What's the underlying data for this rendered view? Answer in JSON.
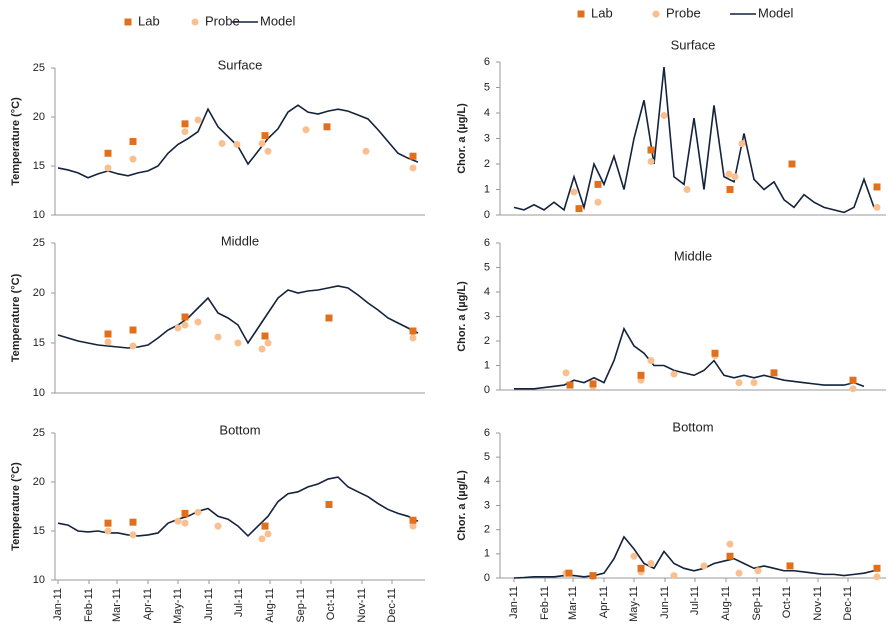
{
  "chart_data": [
    {
      "type": "line",
      "title": "Surface",
      "ylabel": "Temperature (°C)",
      "xlim": [
        -3,
        367
      ],
      "ylim": [
        10,
        25
      ],
      "yticks": [
        10,
        15,
        20,
        25
      ],
      "series": [
        {
          "name": "Lab",
          "style": "square",
          "color": "#e0701e",
          "x": [
            50,
            75,
            127,
            207,
            269,
            355
          ],
          "values": [
            16.3,
            17.5,
            19.3,
            18.1,
            19,
            16
          ]
        },
        {
          "name": "Probe",
          "style": "circle",
          "color": "#f9bf8f",
          "x": [
            50,
            75,
            127,
            140,
            164,
            179,
            204,
            210,
            248,
            308,
            355
          ],
          "values": [
            14.8,
            15.7,
            18.5,
            19.7,
            17.3,
            17.2,
            17.3,
            16.5,
            18.7,
            16.5,
            14.8
          ]
        },
        {
          "name": "Model",
          "style": "line",
          "color": "#14233b",
          "x": [
            0,
            10,
            20,
            30,
            40,
            50,
            60,
            70,
            80,
            90,
            100,
            110,
            120,
            130,
            140,
            150,
            160,
            170,
            180,
            190,
            200,
            210,
            220,
            230,
            240,
            250,
            260,
            270,
            280,
            290,
            300,
            310,
            320,
            330,
            340,
            350,
            360
          ],
          "values": [
            14.8,
            14.6,
            14.3,
            13.8,
            14.2,
            14.5,
            14.2,
            14.0,
            14.3,
            14.5,
            15.0,
            16.3,
            17.2,
            17.8,
            18.5,
            20.8,
            19.0,
            18.0,
            17.0,
            15.2,
            16.5,
            17.8,
            18.8,
            20.5,
            21.2,
            20.5,
            20.3,
            20.6,
            20.8,
            20.6,
            20.2,
            19.8,
            18.7,
            17.5,
            16.3,
            15.8,
            15.4
          ]
        }
      ]
    },
    {
      "type": "line",
      "title": "Middle",
      "ylabel": "Temperature (°C)",
      "xlim": [
        -3,
        367
      ],
      "ylim": [
        10,
        25
      ],
      "yticks": [
        10,
        15,
        20,
        25
      ],
      "series": [
        {
          "style": "square",
          "color": "#e0701e",
          "x": [
            50,
            75,
            127,
            207,
            271,
            355
          ],
          "values": [
            15.9,
            16.3,
            17.6,
            15.7,
            17.5,
            16.2
          ]
        },
        {
          "style": "circle",
          "color": "#f9bf8f",
          "x": [
            50,
            75,
            120,
            127,
            140,
            160,
            180,
            204,
            210,
            355
          ],
          "values": [
            15.1,
            14.7,
            16.5,
            16.8,
            17.1,
            15.6,
            15.0,
            14.4,
            15.0,
            15.5
          ]
        },
        {
          "style": "line",
          "color": "#14233b",
          "x": [
            0,
            10,
            20,
            30,
            40,
            50,
            60,
            70,
            80,
            90,
            100,
            110,
            120,
            130,
            140,
            150,
            160,
            170,
            180,
            190,
            200,
            210,
            220,
            230,
            240,
            250,
            260,
            270,
            280,
            290,
            300,
            310,
            320,
            330,
            340,
            350,
            360
          ],
          "values": [
            15.8,
            15.5,
            15.2,
            15.0,
            14.8,
            14.7,
            14.6,
            14.5,
            14.6,
            14.8,
            15.5,
            16.3,
            16.8,
            17.5,
            18.5,
            19.5,
            18.0,
            17.5,
            16.8,
            15.0,
            16.5,
            18.0,
            19.5,
            20.3,
            20.0,
            20.2,
            20.3,
            20.5,
            20.7,
            20.5,
            19.8,
            19.0,
            18.3,
            17.5,
            17.0,
            16.5,
            16.0
          ]
        }
      ]
    },
    {
      "type": "line",
      "title": "Bottom",
      "ylabel": "Temperature (°C)",
      "xlim": [
        -3,
        367
      ],
      "ylim": [
        10,
        25
      ],
      "yticks": [
        10,
        15,
        20,
        25
      ],
      "xticks": [
        {
          "value": 0,
          "label": "Jan-11"
        },
        {
          "value": 31,
          "label": "Feb-11"
        },
        {
          "value": 59,
          "label": "Mar-11"
        },
        {
          "value": 90,
          "label": "Apr-11"
        },
        {
          "value": 120,
          "label": "May-11"
        },
        {
          "value": 151,
          "label": "Jun-11"
        },
        {
          "value": 181,
          "label": "Jul-11"
        },
        {
          "value": 212,
          "label": "Aug-11"
        },
        {
          "value": 243,
          "label": "Sep-11"
        },
        {
          "value": 273,
          "label": "Oct-11"
        },
        {
          "value": 304,
          "label": "Nov-11"
        },
        {
          "value": 334,
          "label": "Dec-11"
        }
      ],
      "series": [
        {
          "style": "square",
          "color": "#e0701e",
          "x": [
            50,
            75,
            127,
            207,
            271,
            355
          ],
          "values": [
            15.8,
            15.9,
            16.8,
            15.5,
            17.7,
            16.1
          ]
        },
        {
          "style": "circle",
          "color": "#f9bf8f",
          "x": [
            50,
            75,
            120,
            127,
            140,
            160,
            204,
            210,
            355
          ],
          "values": [
            15.0,
            14.6,
            16.0,
            15.8,
            16.9,
            15.5,
            14.2,
            14.7,
            15.5
          ]
        },
        {
          "style": "line",
          "color": "#14233b",
          "x": [
            0,
            10,
            20,
            30,
            40,
            50,
            60,
            70,
            80,
            90,
            100,
            110,
            120,
            130,
            140,
            150,
            160,
            170,
            180,
            190,
            200,
            210,
            220,
            230,
            240,
            250,
            260,
            270,
            280,
            290,
            300,
            310,
            320,
            330,
            340,
            350,
            360
          ],
          "values": [
            15.8,
            15.6,
            15.0,
            14.9,
            15.0,
            14.8,
            14.8,
            14.6,
            14.5,
            14.6,
            14.8,
            15.8,
            16.2,
            16.5,
            17.0,
            17.3,
            16.5,
            16.2,
            15.5,
            14.5,
            15.5,
            16.5,
            18.0,
            18.8,
            19.0,
            19.5,
            19.8,
            20.3,
            20.5,
            19.5,
            19.0,
            18.5,
            17.8,
            17.2,
            16.8,
            16.5,
            16.0
          ]
        }
      ]
    },
    {
      "type": "line",
      "title": "Surface",
      "ylabel": "Chor. a (µg/L)",
      "xlim": [
        -14,
        372
      ],
      "ylim": [
        0,
        6
      ],
      "yticks": [
        0,
        1,
        2,
        3,
        4,
        5,
        6
      ],
      "series": [
        {
          "name": "Lab",
          "style": "square",
          "color": "#e0701e",
          "x": [
            65,
            84,
            137,
            216,
            278,
            363
          ],
          "values": [
            0.25,
            1.2,
            2.55,
            1.0,
            2.0,
            1.1
          ]
        },
        {
          "name": "Probe",
          "style": "circle",
          "color": "#f9bf8f",
          "x": [
            60,
            84,
            137,
            150,
            173,
            215,
            221,
            228,
            363
          ],
          "values": [
            0.9,
            0.5,
            2.1,
            3.9,
            1.0,
            1.6,
            1.5,
            2.8,
            0.3
          ]
        },
        {
          "name": "Model",
          "style": "line",
          "color": "#14233b",
          "x": [
            0,
            10,
            20,
            30,
            40,
            50,
            60,
            70,
            80,
            90,
            100,
            110,
            120,
            130,
            140,
            150,
            160,
            170,
            180,
            190,
            200,
            210,
            220,
            230,
            240,
            250,
            260,
            270,
            280,
            290,
            300,
            310,
            320,
            330,
            340,
            350,
            360
          ],
          "values": [
            0.3,
            0.2,
            0.4,
            0.2,
            0.5,
            0.2,
            1.5,
            0.3,
            2.0,
            1.2,
            2.3,
            1.0,
            3.0,
            4.5,
            2.0,
            5.8,
            1.5,
            1.2,
            3.8,
            1.0,
            4.3,
            1.5,
            1.3,
            3.2,
            1.4,
            1.0,
            1.3,
            0.6,
            0.3,
            0.8,
            0.5,
            0.3,
            0.2,
            0.1,
            0.3,
            1.4,
            0.3
          ]
        }
      ]
    },
    {
      "type": "line",
      "title": "Middle",
      "ylabel": "Chor. a (µg/L)",
      "xlim": [
        -14,
        372
      ],
      "ylim": [
        0,
        6
      ],
      "yticks": [
        0,
        1,
        2,
        3,
        4,
        5,
        6
      ],
      "series": [
        {
          "style": "square",
          "color": "#e0701e",
          "x": [
            56,
            79,
            127,
            201,
            260,
            339
          ],
          "values": [
            0.2,
            0.25,
            0.6,
            1.5,
            0.7,
            0.4
          ]
        },
        {
          "style": "circle",
          "color": "#f9bf8f",
          "x": [
            52,
            79,
            127,
            137,
            160,
            201,
            225,
            240,
            339
          ],
          "values": [
            0.7,
            0.15,
            0.4,
            1.2,
            0.65,
            1.4,
            0.3,
            0.3,
            0.05
          ]
        },
        {
          "style": "line",
          "color": "#14233b",
          "x": [
            0,
            10,
            20,
            30,
            40,
            50,
            60,
            70,
            80,
            90,
            100,
            110,
            120,
            130,
            140,
            150,
            160,
            170,
            180,
            190,
            200,
            210,
            220,
            230,
            240,
            250,
            260,
            270,
            280,
            290,
            300,
            310,
            320,
            330,
            340,
            350
          ],
          "values": [
            0.05,
            0.05,
            0.05,
            0.1,
            0.15,
            0.2,
            0.4,
            0.3,
            0.5,
            0.3,
            1.2,
            2.5,
            1.8,
            1.5,
            1.0,
            1.0,
            0.8,
            0.7,
            0.6,
            0.8,
            1.2,
            0.6,
            0.5,
            0.6,
            0.5,
            0.6,
            0.5,
            0.4,
            0.35,
            0.3,
            0.25,
            0.2,
            0.2,
            0.2,
            0.3,
            0.15
          ]
        }
      ]
    },
    {
      "type": "line",
      "title": "Bottom",
      "ylabel": "Chor. a (µg/L)",
      "xlim": [
        -14,
        372
      ],
      "ylim": [
        0,
        6
      ],
      "yticks": [
        0,
        1,
        2,
        3,
        4,
        5,
        6
      ],
      "xticks": [
        {
          "value": 0,
          "label": "Jan-11"
        },
        {
          "value": 31,
          "label": "Feb-11"
        },
        {
          "value": 59,
          "label": "Mar-11"
        },
        {
          "value": 90,
          "label": "Apr-11"
        },
        {
          "value": 120,
          "label": "May-11"
        },
        {
          "value": 151,
          "label": "Jun-11"
        },
        {
          "value": 181,
          "label": "Jul-11"
        },
        {
          "value": 212,
          "label": "Aug-11"
        },
        {
          "value": 243,
          "label": "Sep-11"
        },
        {
          "value": 273,
          "label": "Oct-11"
        },
        {
          "value": 304,
          "label": "Nov-11"
        },
        {
          "value": 334,
          "label": "Dec-11"
        }
      ],
      "series": [
        {
          "style": "square",
          "color": "#e0701e",
          "x": [
            55,
            79,
            127,
            216,
            276,
            363
          ],
          "values": [
            0.2,
            0.1,
            0.4,
            0.9,
            0.5,
            0.4
          ]
        },
        {
          "style": "circle",
          "color": "#f9bf8f",
          "x": [
            52,
            79,
            120,
            127,
            137,
            160,
            190,
            216,
            225,
            244,
            363
          ],
          "values": [
            0.2,
            0.05,
            0.9,
            0.25,
            0.6,
            0.1,
            0.5,
            1.4,
            0.2,
            0.3,
            0.05
          ]
        },
        {
          "style": "line",
          "color": "#14233b",
          "x": [
            0,
            10,
            20,
            30,
            40,
            50,
            60,
            70,
            80,
            90,
            100,
            110,
            120,
            130,
            140,
            150,
            160,
            170,
            180,
            190,
            200,
            210,
            220,
            230,
            240,
            250,
            260,
            270,
            280,
            290,
            300,
            310,
            320,
            330,
            340,
            350,
            360
          ],
          "values": [
            0,
            0.02,
            0.05,
            0.05,
            0.05,
            0.1,
            0.1,
            0.05,
            0.1,
            0.2,
            0.8,
            1.7,
            1.2,
            0.6,
            0.4,
            1.1,
            0.6,
            0.4,
            0.3,
            0.4,
            0.6,
            0.7,
            0.8,
            0.6,
            0.4,
            0.5,
            0.4,
            0.3,
            0.3,
            0.25,
            0.2,
            0.15,
            0.15,
            0.1,
            0.15,
            0.2,
            0.3
          ]
        }
      ]
    }
  ]
}
